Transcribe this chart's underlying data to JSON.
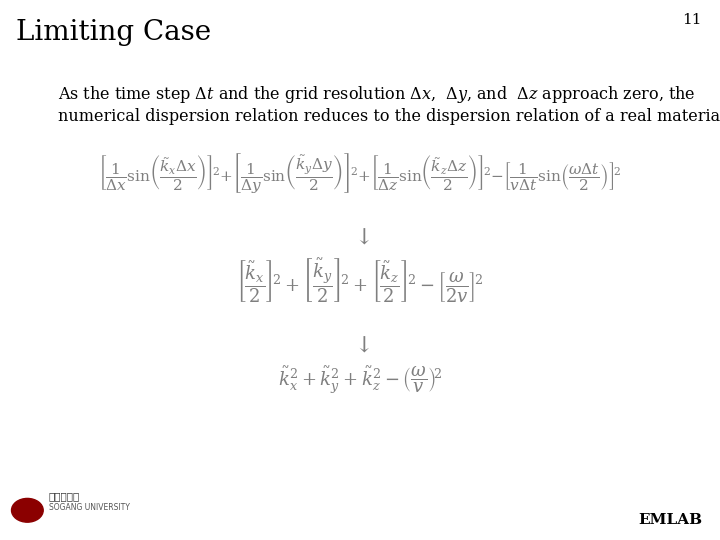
{
  "title": "Limiting Case",
  "slide_number": "11",
  "bg_color": "#ffffff",
  "title_color": "#000000",
  "text_color": "#000000",
  "eq_color": "#7f7f7f",
  "emlab_text": "EMLAB",
  "title_fontsize": 20,
  "slide_num_fontsize": 11,
  "body_fontsize": 11.5,
  "eq1_fontsize": 11,
  "eq2_fontsize": 13,
  "eq3_fontsize": 13,
  "arrow_fontsize": 16,
  "emlab_fontsize": 11
}
